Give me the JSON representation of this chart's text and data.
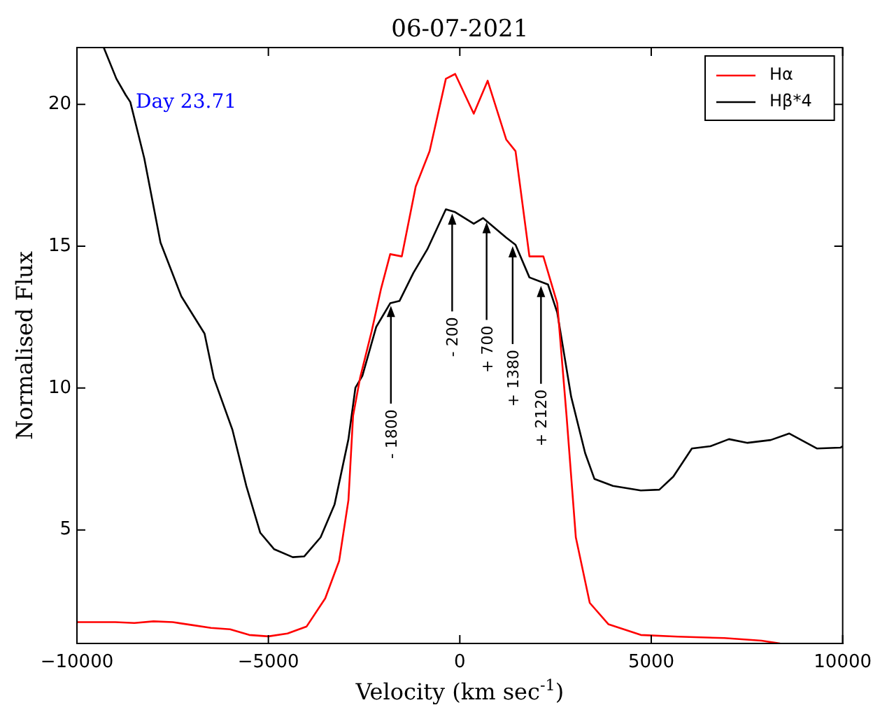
{
  "chart_data": {
    "type": "line",
    "title": "06-07-2021",
    "xlabel": "Velocity (km sec$^{-1}$)",
    "ylabel": "Normalised Flux",
    "xlim": [
      -10000,
      10000
    ],
    "xticks": [
      -10000,
      -5000,
      0,
      5000,
      10000
    ],
    "ylim": [
      1,
      22
    ],
    "yticks": [
      5,
      10,
      15,
      20
    ],
    "grid": false,
    "legend": "top right",
    "marker": "none",
    "line_style": "solid",
    "series": [
      {
        "name": "Hα",
        "color": "#ff0000",
        "x": [
          -10000,
          -9000,
          -8500,
          -8000,
          -7500,
          -7000,
          -6500,
          -6000,
          -5500,
          -5000,
          -4500,
          -4000,
          -3515,
          -3152,
          -2909,
          -2788,
          -2606,
          -2303,
          -2061,
          -1818,
          -1515,
          -1152,
          -788,
          -364,
          -121,
          364,
          727,
          1212,
          1455,
          1818,
          2182,
          2545,
          2788,
          3030,
          3394,
          3879,
          4727,
          5697,
          6909,
          7879,
          8364
        ],
        "values": [
          1.75,
          1.75,
          1.72,
          1.78,
          1.75,
          1.65,
          1.55,
          1.5,
          1.3,
          1.25,
          1.35,
          1.6,
          2.59,
          3.91,
          6.05,
          9.02,
          10.35,
          12.0,
          13.48,
          14.72,
          14.64,
          17.1,
          18.35,
          20.9,
          21.07,
          19.67,
          20.83,
          18.76,
          18.35,
          14.64,
          14.64,
          12.99,
          9.02,
          4.74,
          2.43,
          1.68,
          1.3,
          1.24,
          1.19,
          1.1,
          1.0
        ]
      },
      {
        "name": "Hβ*4",
        "color": "#000000",
        "x": [
          -9300,
          -8970,
          -8727,
          -8606,
          -8242,
          -7818,
          -7273,
          -6667,
          -6424,
          -5939,
          -5576,
          -5212,
          -4848,
          -4364,
          -4061,
          -3636,
          -3273,
          -2909,
          -2727,
          -2545,
          -2182,
          -1818,
          -1576,
          -1212,
          -848,
          -364,
          -121,
          364,
          606,
          1212,
          1455,
          1818,
          2303,
          2545,
          2909,
          3273,
          3515,
          4000,
          4727,
          5212,
          5576,
          6061,
          6545,
          7030,
          7515,
          8121,
          8606,
          9333,
          9939,
          10000
        ],
        "values": [
          22,
          20.9,
          20.33,
          20.08,
          18.1,
          15.13,
          13.23,
          11.92,
          10.35,
          8.53,
          6.55,
          4.9,
          4.32,
          4.04,
          4.07,
          4.74,
          5.89,
          8.2,
          10.01,
          10.43,
          12.16,
          12.99,
          13.07,
          14.06,
          14.89,
          16.3,
          16.2,
          15.79,
          15.99,
          15.3,
          15.05,
          13.9,
          13.65,
          12.66,
          9.69,
          7.71,
          6.8,
          6.55,
          6.39,
          6.42,
          6.88,
          7.87,
          7.95,
          8.2,
          8.07,
          8.17,
          8.4,
          7.87,
          7.9,
          7.95
        ]
      }
    ],
    "annotations": [
      "Day 23.71",
      {
        "text": "- 1800",
        "x": -1800,
        "y": 13.0
      },
      {
        "text": "- 200",
        "x": -200,
        "y": 16.25
      },
      {
        "text": "+ 700",
        "x": 700,
        "y": 15.95
      },
      {
        "text": "+ 1380",
        "x": 1380,
        "y": 15.1
      },
      {
        "text": "+ 2120",
        "x": 2120,
        "y": 13.7
      }
    ]
  }
}
